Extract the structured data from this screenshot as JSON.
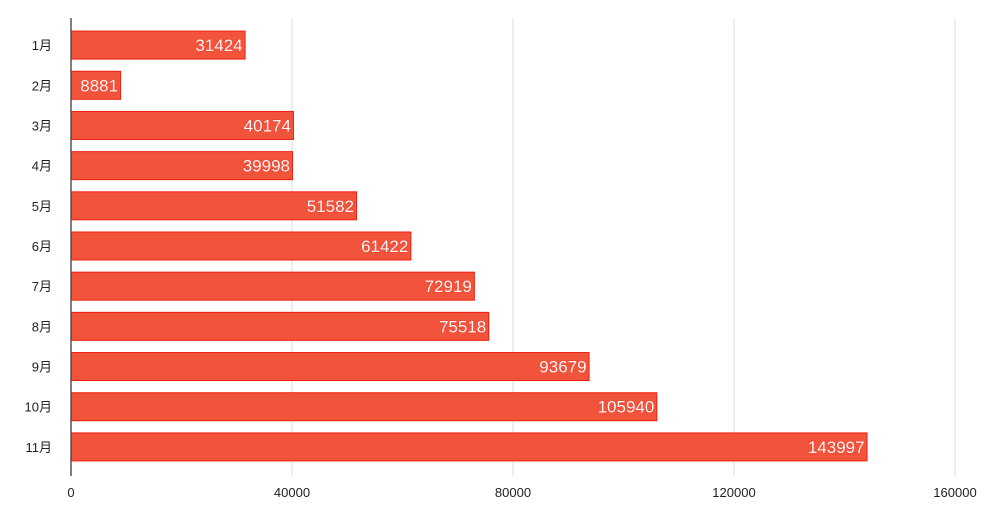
{
  "chart_data": {
    "type": "bar",
    "orientation": "horizontal",
    "title": "",
    "xlabel": "",
    "ylabel": "",
    "categories": [
      "1月",
      "2月",
      "3月",
      "4月",
      "5月",
      "6月",
      "7月",
      "8月",
      "9月",
      "10月",
      "11月"
    ],
    "values": [
      31424,
      8881,
      40174,
      39998,
      51582,
      61422,
      72919,
      75518,
      93679,
      105940,
      143997
    ],
    "xlim": [
      0,
      160000
    ],
    "xticks": [
      0,
      40000,
      80000,
      120000,
      160000
    ],
    "grid": true,
    "data_labels": true,
    "colors": {
      "bar": "#f2543b",
      "bar_border": "#f01e10",
      "grid": "#dddddd",
      "axis": "#555555",
      "label_text": "#ffffff"
    }
  }
}
